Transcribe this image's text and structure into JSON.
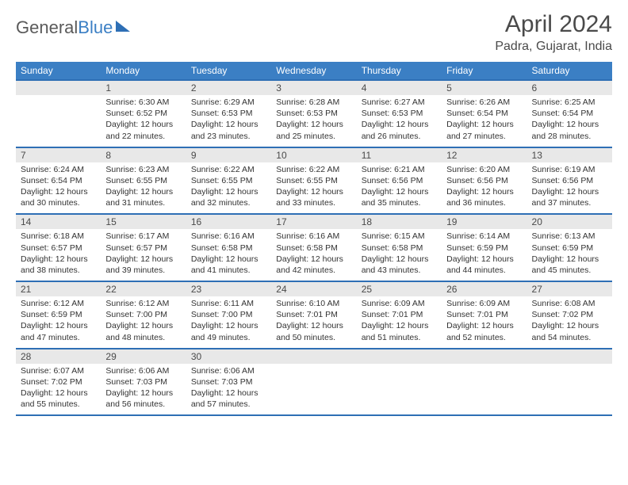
{
  "logo": {
    "word1": "General",
    "word2": "Blue"
  },
  "title": "April 2024",
  "location": "Padra, Gujarat, India",
  "colors": {
    "header_bg": "#3b7fc4",
    "header_border": "#2e6fb5",
    "daynum_bg": "#e8e8e8",
    "text": "#333333",
    "title_text": "#4a4a4a"
  },
  "weekdays": [
    "Sunday",
    "Monday",
    "Tuesday",
    "Wednesday",
    "Thursday",
    "Friday",
    "Saturday"
  ],
  "start_offset": 1,
  "days": [
    {
      "n": 1,
      "sr": "6:30 AM",
      "ss": "6:52 PM",
      "dl": "12 hours and 22 minutes."
    },
    {
      "n": 2,
      "sr": "6:29 AM",
      "ss": "6:53 PM",
      "dl": "12 hours and 23 minutes."
    },
    {
      "n": 3,
      "sr": "6:28 AM",
      "ss": "6:53 PM",
      "dl": "12 hours and 25 minutes."
    },
    {
      "n": 4,
      "sr": "6:27 AM",
      "ss": "6:53 PM",
      "dl": "12 hours and 26 minutes."
    },
    {
      "n": 5,
      "sr": "6:26 AM",
      "ss": "6:54 PM",
      "dl": "12 hours and 27 minutes."
    },
    {
      "n": 6,
      "sr": "6:25 AM",
      "ss": "6:54 PM",
      "dl": "12 hours and 28 minutes."
    },
    {
      "n": 7,
      "sr": "6:24 AM",
      "ss": "6:54 PM",
      "dl": "12 hours and 30 minutes."
    },
    {
      "n": 8,
      "sr": "6:23 AM",
      "ss": "6:55 PM",
      "dl": "12 hours and 31 minutes."
    },
    {
      "n": 9,
      "sr": "6:22 AM",
      "ss": "6:55 PM",
      "dl": "12 hours and 32 minutes."
    },
    {
      "n": 10,
      "sr": "6:22 AM",
      "ss": "6:55 PM",
      "dl": "12 hours and 33 minutes."
    },
    {
      "n": 11,
      "sr": "6:21 AM",
      "ss": "6:56 PM",
      "dl": "12 hours and 35 minutes."
    },
    {
      "n": 12,
      "sr": "6:20 AM",
      "ss": "6:56 PM",
      "dl": "12 hours and 36 minutes."
    },
    {
      "n": 13,
      "sr": "6:19 AM",
      "ss": "6:56 PM",
      "dl": "12 hours and 37 minutes."
    },
    {
      "n": 14,
      "sr": "6:18 AM",
      "ss": "6:57 PM",
      "dl": "12 hours and 38 minutes."
    },
    {
      "n": 15,
      "sr": "6:17 AM",
      "ss": "6:57 PM",
      "dl": "12 hours and 39 minutes."
    },
    {
      "n": 16,
      "sr": "6:16 AM",
      "ss": "6:58 PM",
      "dl": "12 hours and 41 minutes."
    },
    {
      "n": 17,
      "sr": "6:16 AM",
      "ss": "6:58 PM",
      "dl": "12 hours and 42 minutes."
    },
    {
      "n": 18,
      "sr": "6:15 AM",
      "ss": "6:58 PM",
      "dl": "12 hours and 43 minutes."
    },
    {
      "n": 19,
      "sr": "6:14 AM",
      "ss": "6:59 PM",
      "dl": "12 hours and 44 minutes."
    },
    {
      "n": 20,
      "sr": "6:13 AM",
      "ss": "6:59 PM",
      "dl": "12 hours and 45 minutes."
    },
    {
      "n": 21,
      "sr": "6:12 AM",
      "ss": "6:59 PM",
      "dl": "12 hours and 47 minutes."
    },
    {
      "n": 22,
      "sr": "6:12 AM",
      "ss": "7:00 PM",
      "dl": "12 hours and 48 minutes."
    },
    {
      "n": 23,
      "sr": "6:11 AM",
      "ss": "7:00 PM",
      "dl": "12 hours and 49 minutes."
    },
    {
      "n": 24,
      "sr": "6:10 AM",
      "ss": "7:01 PM",
      "dl": "12 hours and 50 minutes."
    },
    {
      "n": 25,
      "sr": "6:09 AM",
      "ss": "7:01 PM",
      "dl": "12 hours and 51 minutes."
    },
    {
      "n": 26,
      "sr": "6:09 AM",
      "ss": "7:01 PM",
      "dl": "12 hours and 52 minutes."
    },
    {
      "n": 27,
      "sr": "6:08 AM",
      "ss": "7:02 PM",
      "dl": "12 hours and 54 minutes."
    },
    {
      "n": 28,
      "sr": "6:07 AM",
      "ss": "7:02 PM",
      "dl": "12 hours and 55 minutes."
    },
    {
      "n": 29,
      "sr": "6:06 AM",
      "ss": "7:03 PM",
      "dl": "12 hours and 56 minutes."
    },
    {
      "n": 30,
      "sr": "6:06 AM",
      "ss": "7:03 PM",
      "dl": "12 hours and 57 minutes."
    }
  ],
  "labels": {
    "sunrise": "Sunrise:",
    "sunset": "Sunset:",
    "daylight": "Daylight:"
  }
}
